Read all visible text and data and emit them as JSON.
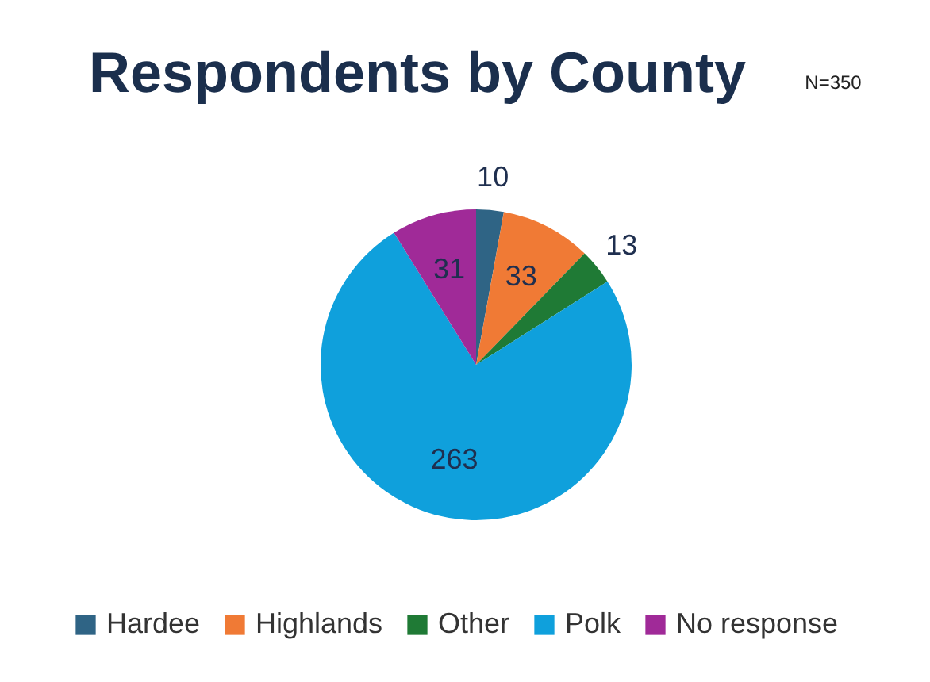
{
  "chart_data": {
    "type": "pie",
    "title": "Respondents by County",
    "annotations": [
      "N=350"
    ],
    "categories": [
      "Hardee",
      "Highlands",
      "Other",
      "Polk",
      "No response"
    ],
    "values": [
      10,
      33,
      13,
      263,
      31
    ],
    "colors": [
      "#2f6485",
      "#f07a35",
      "#1f7a35",
      "#0fa0dc",
      "#a02a98"
    ],
    "data_labels": true,
    "legend": "bottom"
  }
}
